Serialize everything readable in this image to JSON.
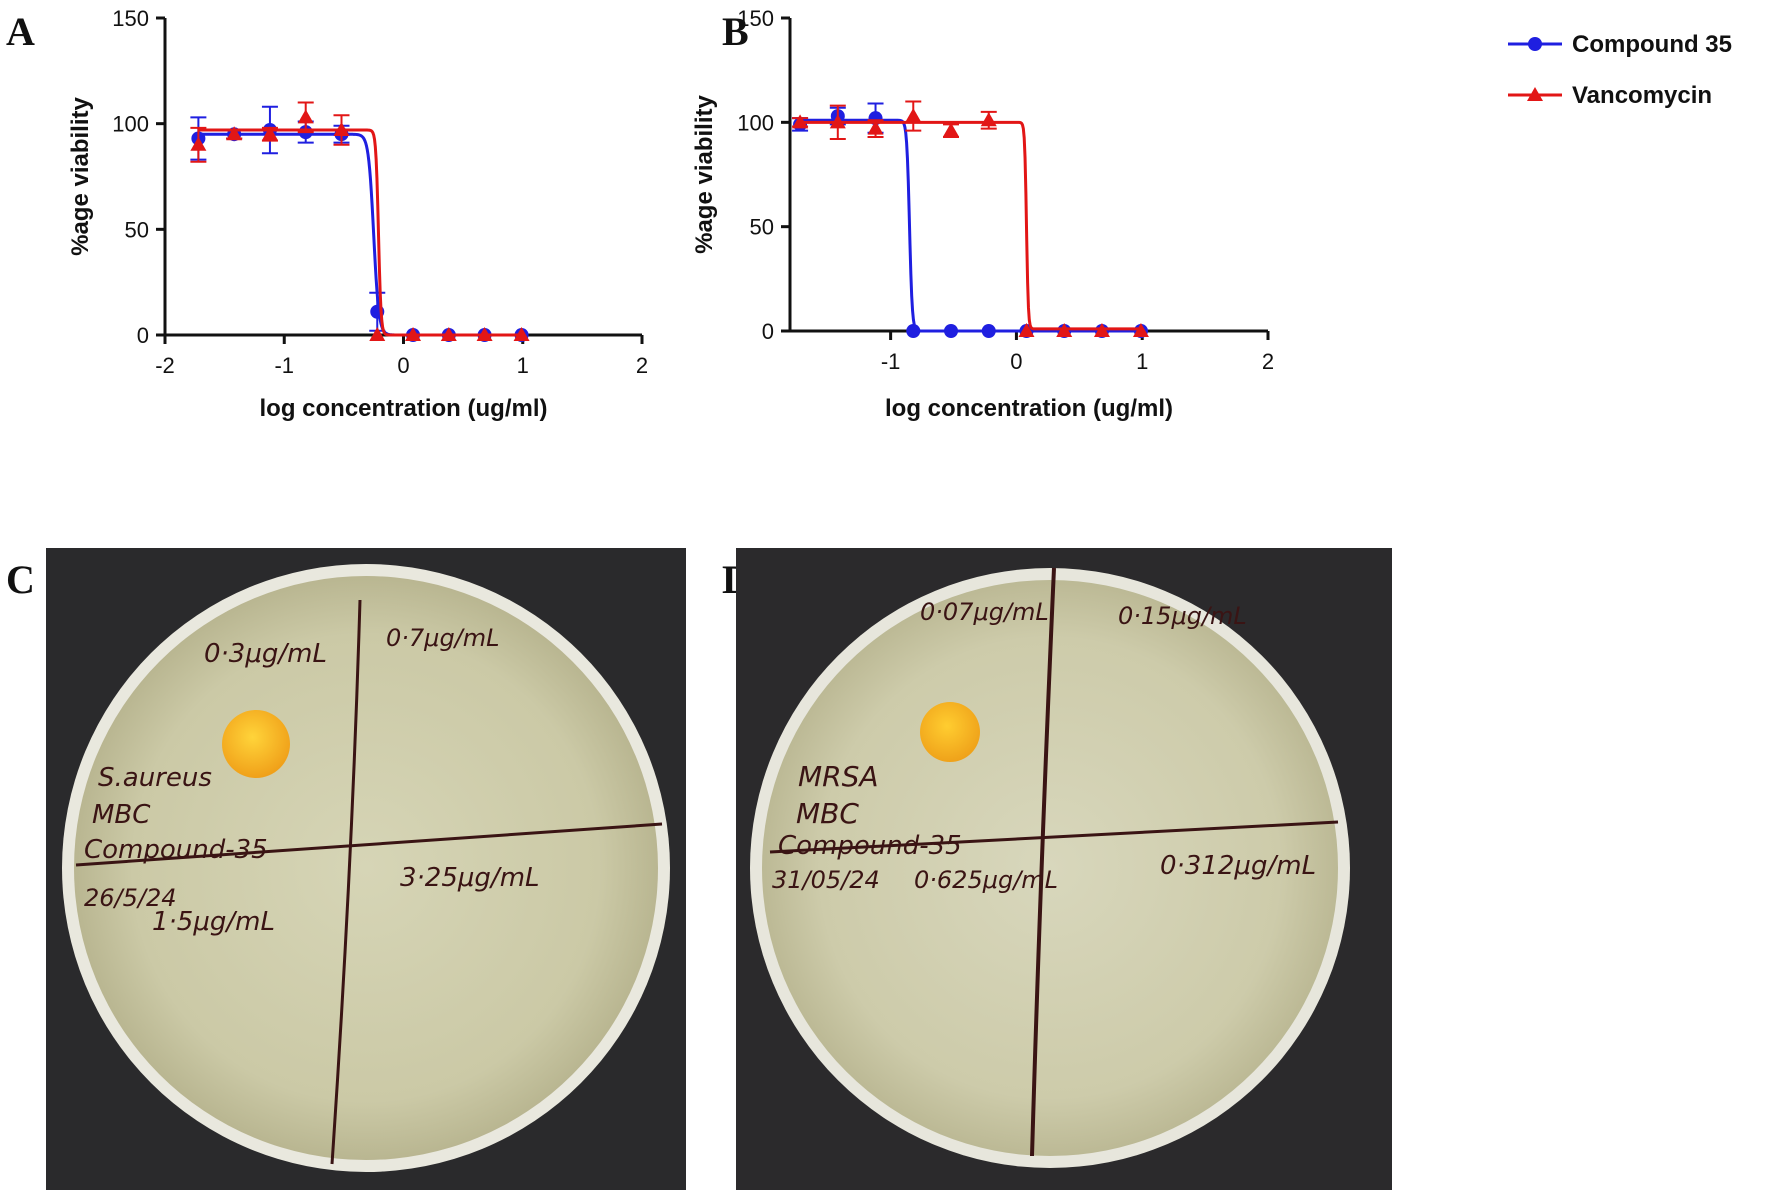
{
  "panels": {
    "a": "A",
    "b": "B",
    "c": "C",
    "d": "D"
  },
  "legend": [
    {
      "name": "Compound 35",
      "color": "#1f1fe0",
      "marker": "circle"
    },
    {
      "name": "Vancomycin",
      "color": "#e21616",
      "marker": "triangle"
    }
  ],
  "chart_data": [
    {
      "panel": "A",
      "type": "line",
      "xlabel": "log concentration (ug/ml)",
      "ylabel": "%age viability",
      "xlim": [
        -2,
        2
      ],
      "ylim": [
        0,
        150
      ],
      "xticks": [
        -2,
        -1,
        0,
        1,
        2
      ],
      "yticks": [
        0,
        50,
        100,
        150
      ],
      "series": [
        {
          "name": "Compound 35",
          "color": "#1f1fe0",
          "marker": "circle",
          "x": [
            -1.72,
            -1.42,
            -1.12,
            -0.82,
            -0.52,
            -0.22,
            0.08,
            0.38,
            0.68,
            0.99
          ],
          "y": [
            93,
            95,
            97,
            96,
            95,
            11,
            0,
            0,
            0,
            0
          ],
          "err": [
            10,
            2,
            11,
            5,
            4,
            9,
            0,
            0,
            0,
            0
          ],
          "fit": {
            "top": 95,
            "bottom": 0,
            "logec50": -0.25,
            "hill": -20
          }
        },
        {
          "name": "Vancomycin",
          "color": "#e21616",
          "marker": "triangle",
          "x": [
            -1.72,
            -1.42,
            -1.12,
            -0.82,
            -0.52,
            -0.22,
            0.08,
            0.38,
            0.68,
            0.99
          ],
          "y": [
            90,
            95,
            95,
            103,
            97,
            0,
            0,
            0,
            0,
            0
          ],
          "err": [
            8,
            2,
            3,
            7,
            7,
            0,
            0,
            0,
            0,
            0
          ],
          "fit": {
            "top": 97,
            "bottom": 0,
            "logec50": -0.21,
            "hill": -40
          }
        }
      ]
    },
    {
      "panel": "B",
      "type": "line",
      "xlabel": "log concentration (ug/ml)",
      "ylabel": "%age viability",
      "xlim": [
        -1.8,
        2
      ],
      "ylim": [
        0,
        150
      ],
      "xticks": [
        -1,
        0,
        1,
        2
      ],
      "yticks": [
        0,
        50,
        100,
        150
      ],
      "series": [
        {
          "name": "Compound 35",
          "color": "#1f1fe0",
          "marker": "circle",
          "x": [
            -1.72,
            -1.42,
            -1.12,
            -0.82,
            -0.52,
            -0.22,
            0.08,
            0.38,
            0.68,
            0.99
          ],
          "y": [
            99,
            103,
            102,
            0,
            0,
            0,
            0,
            0,
            0,
            0
          ],
          "err": [
            3,
            4,
            7,
            0,
            0,
            0,
            0,
            0,
            0,
            0
          ],
          "fit": {
            "top": 101,
            "bottom": 0,
            "logec50": -0.85,
            "hill": -40
          }
        },
        {
          "name": "Vancomycin",
          "color": "#e21616",
          "marker": "triangle",
          "x": [
            -1.72,
            -1.42,
            -1.12,
            -0.82,
            -0.52,
            -0.22,
            0.08,
            0.38,
            0.68,
            0.99
          ],
          "y": [
            100,
            100,
            97,
            103,
            96,
            101,
            0,
            0,
            0,
            0
          ],
          "err": [
            2,
            8,
            4,
            7,
            3,
            4,
            0,
            0,
            0,
            0
          ],
          "fit": {
            "top": 100,
            "bottom": 1,
            "logec50": 0.08,
            "hill": -60
          }
        }
      ]
    }
  ],
  "plate_c": {
    "q_top_left": "0·3μg/mL",
    "q_top_right": "0·7μg/mL",
    "q_bottom_left": "1·5μg/mL",
    "q_bottom_right": "3·25μg/mL",
    "label_lines": [
      "S.aureus",
      "MBC",
      "Compound-35",
      "26/5/24"
    ]
  },
  "plate_d": {
    "q_top_left": "0·07μg/mL",
    "q_top_right": "0·15μg/mL",
    "q_bottom_left": "0·625μg/mL",
    "q_bottom_right": "0·312μg/mL",
    "label_lines": [
      "MRSA",
      "MBC",
      "Compound-35",
      "31/05/24"
    ]
  }
}
